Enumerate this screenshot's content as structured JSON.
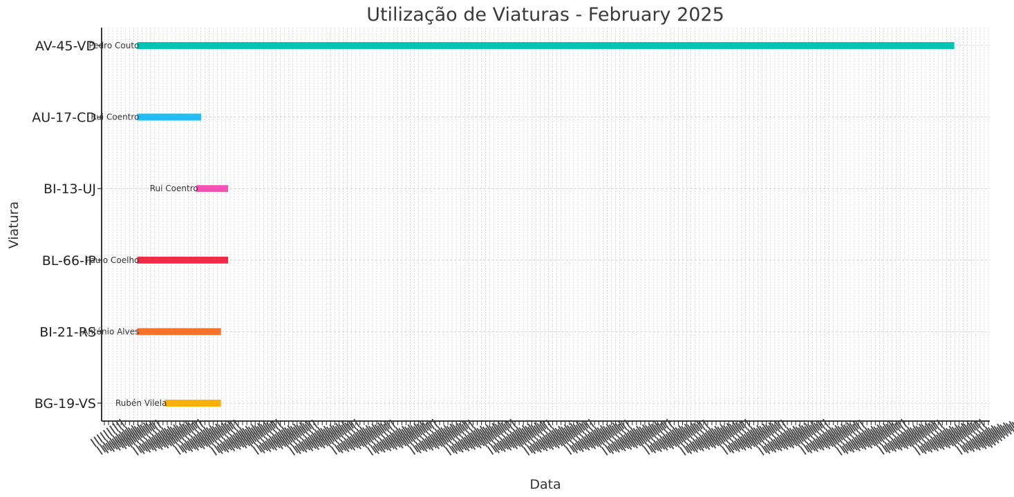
{
  "chart_data": {
    "type": "gantt",
    "title": "Utilização de Viaturas - February 2025",
    "xlabel": "Data",
    "ylabel": "Viatura",
    "grid": true,
    "vehicles": [
      "AV-45-VD",
      "AU-17-CD",
      "BI-13-UJ",
      "BL-66-IP",
      "BI-21-RS",
      "BG-19-VS"
    ],
    "x_domain": [
      -5,
      120
    ],
    "bars": [
      {
        "vehicle": "AV-45-VD",
        "driver": "Pedro Couto",
        "start": 0,
        "end": 115,
        "color": "#00c5b5"
      },
      {
        "vehicle": "AU-17-CD",
        "driver": "Rui Coentro",
        "start": 0,
        "end": 9,
        "color": "#22bdf4"
      },
      {
        "vehicle": "BI-13-UJ",
        "driver": "Rui Coentro",
        "start": 8.3,
        "end": 12.8,
        "color": "#f652b6"
      },
      {
        "vehicle": "BL-66-IP",
        "driver": "Paulo Coelho",
        "start": 0,
        "end": 12.8,
        "color": "#f12a48"
      },
      {
        "vehicle": "BI-21-RS",
        "driver": "António Alves",
        "start": 0,
        "end": 11.8,
        "color": "#f7712a"
      },
      {
        "vehicle": "BG-19-VS",
        "driver": "Rubén Vilela",
        "start": 3.9,
        "end": 11.8,
        "color": "#fbaf0a"
      }
    ]
  }
}
